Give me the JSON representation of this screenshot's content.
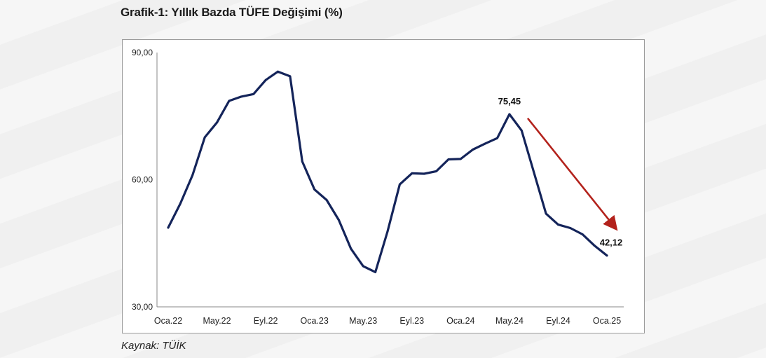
{
  "title": "Grafik-1: Yıllık Bazda TÜFE Değişimi (%)",
  "source": "Kaynak: TÜİK",
  "colors": {
    "line": "#14245a",
    "arrow": "#b3221c",
    "axis": "#888888"
  },
  "chart_data": {
    "type": "line",
    "title": "Grafik-1: Yıllık Bazda TÜFE Değişimi (%)",
    "ylim": [
      30,
      90
    ],
    "yticks": [
      "30,00",
      "60,00",
      "90,00"
    ],
    "ytick_values": [
      30,
      60,
      90
    ],
    "xtick_labels": [
      "Oca.22",
      "May.22",
      "Eyl.22",
      "Oca.23",
      "May.23",
      "Eyl.23",
      "Oca.24",
      "May.24",
      "Eyl.24",
      "Oca.25"
    ],
    "xtick_indices": [
      0,
      4,
      8,
      12,
      16,
      20,
      24,
      28,
      32,
      36
    ],
    "grid": false,
    "series": [
      {
        "values": [
          48.7,
          54.4,
          61.1,
          70.0,
          73.5,
          78.6,
          79.6,
          80.2,
          83.5,
          85.5,
          84.4,
          64.3,
          57.7,
          55.2,
          50.5,
          43.7,
          39.6,
          38.2,
          47.8,
          58.9,
          61.5,
          61.4,
          62.0,
          64.8,
          64.9,
          67.1,
          68.5,
          69.8,
          75.45,
          71.6,
          61.8,
          52.0,
          49.4,
          48.6,
          47.1,
          44.4,
          42.12
        ]
      }
    ],
    "annotations": [
      {
        "label": "75,45",
        "index": 28,
        "value": 75.45
      },
      {
        "label": "42,12",
        "index": 36,
        "value": 42.12
      }
    ],
    "trend_arrow": {
      "from_index": 29.5,
      "from_value": 74.5,
      "to_index": 36.7,
      "to_value": 48.6,
      "color": "#b3221c"
    }
  }
}
